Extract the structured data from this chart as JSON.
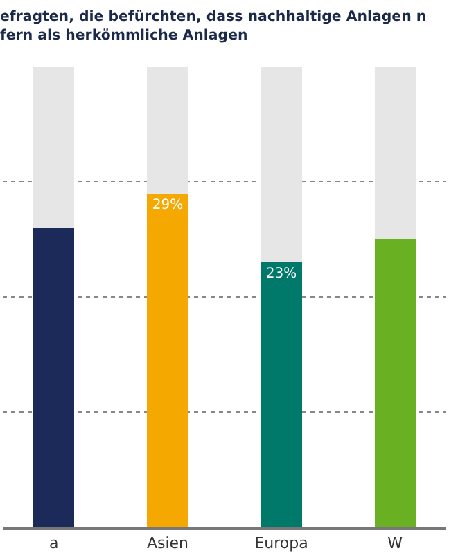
{
  "chart_data": {
    "type": "bar",
    "title": "efragten, die befürchten, dass nachhaltige Anlagen n\nfern als herkömmliche Anlagen",
    "categories": [
      "a",
      "Asien",
      "Europa",
      "W"
    ],
    "stacked": true,
    "series": [
      {
        "colors": [
          "#1c2a5a",
          "#f5a800",
          "#00786a",
          "#6ab023"
        ],
        "values": [
          26,
          29,
          23,
          25
        ],
        "value_labels": [
          null,
          "29%",
          "23%",
          null
        ]
      },
      {
        "color": "#e6e6e6",
        "values": [
          14,
          11,
          17,
          15
        ]
      }
    ],
    "ylim": [
      0,
      40
    ],
    "yticks": [
      {
        "value": 10,
        "label": null
      },
      {
        "value": 20,
        "label": null
      },
      {
        "value": 30,
        "label": null
      }
    ],
    "grid": "y",
    "tick_labels": "x"
  }
}
